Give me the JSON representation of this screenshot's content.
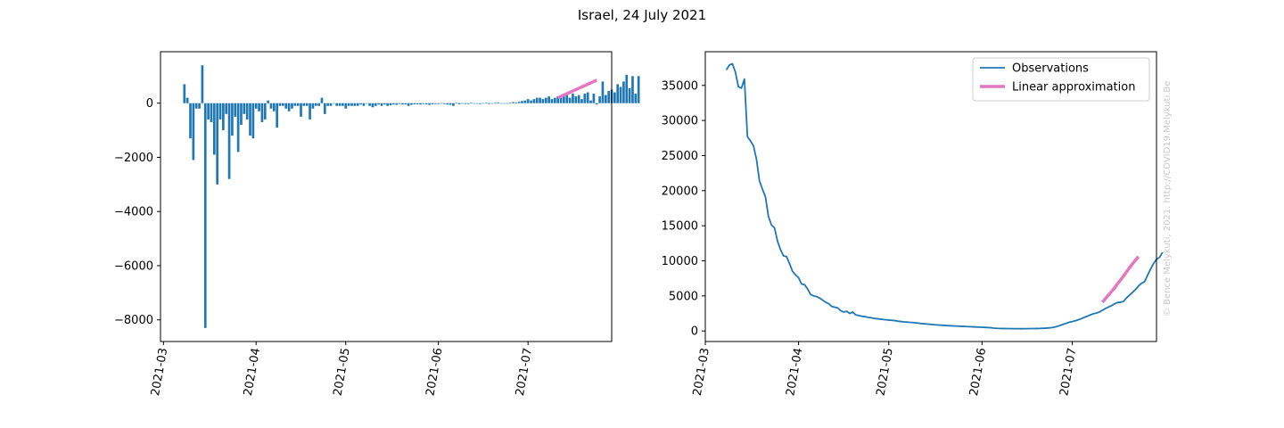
{
  "figure_title": "Israel, 24 July 2021",
  "watermark": "© Bence Melykuti, 2021. http://COVID19.Melykuti.Be",
  "colors": {
    "bars": "#1f77b4",
    "observations": "#1f77b4",
    "approximation": "#e377c2"
  },
  "chart_data": [
    {
      "type": "bar",
      "x_axis": "date",
      "xlim": [
        "2021-02-28",
        "2021-07-29"
      ],
      "ylim": [
        -8800,
        1900
      ],
      "x_ticks": [
        "2021-03",
        "2021-04",
        "2021-05",
        "2021-06",
        "2021-07"
      ],
      "y_ticks": [
        0,
        -2000,
        -4000,
        -6000,
        -8000
      ],
      "y_tick_labels": [
        "0",
        "−2000",
        "−4000",
        "−6000",
        "−8000"
      ],
      "series": [
        {
          "start_date": "2021-03-08",
          "values": [
            700,
            200,
            -1300,
            -2100,
            -200,
            -200,
            1400,
            -8300,
            -600,
            -700,
            -1900,
            -3000,
            -600,
            -1000,
            -400,
            -2800,
            -1200,
            -500,
            -1800,
            -800,
            -400,
            -600,
            -1200,
            -1300,
            -200,
            -300,
            -700,
            -600,
            100,
            -200,
            -300,
            -900,
            -100,
            -100,
            -200,
            -300,
            -200,
            -100,
            -100,
            -500,
            -100,
            -100,
            -600,
            -200,
            -100,
            -100,
            200,
            -400,
            -100,
            -100,
            0,
            -100,
            -100,
            -100,
            -200,
            -100,
            -100,
            -100,
            -100,
            -50,
            -100,
            0,
            -100,
            -150,
            -100,
            -50,
            -100,
            -50,
            -100,
            -80,
            -50,
            -60,
            -30,
            -50,
            -50,
            -100,
            -60,
            -40,
            -40,
            -50,
            -30,
            -40,
            -60,
            -40,
            -30,
            -30,
            -20,
            -30,
            -50,
            -60,
            -100,
            20,
            -40,
            -20,
            -30,
            -30,
            20,
            -20,
            -10,
            -30,
            -10,
            20,
            -30,
            -20,
            20,
            30,
            -10,
            -10,
            -20,
            20,
            40,
            30,
            50,
            80,
            100,
            150,
            100,
            150,
            200,
            200,
            150,
            200,
            250,
            150,
            200,
            250,
            200,
            250,
            300,
            200,
            350,
            250,
            300,
            150,
            350,
            400,
            100,
            350,
            -50,
            250,
            800,
            300,
            450,
            500,
            400,
            700,
            600,
            800,
            1050,
            550,
            1000,
            350,
            1000
          ]
        },
        {
          "name": "Linear approximation",
          "type": "line",
          "points": [
            [
              "2021-07-11",
              200
            ],
            [
              "2021-07-24",
              850
            ]
          ]
        }
      ]
    },
    {
      "type": "line",
      "x_axis": "date",
      "xlim": [
        "2021-03-01",
        "2021-07-29"
      ],
      "ylim": [
        -1500,
        39800
      ],
      "x_ticks": [
        "2021-03",
        "2021-04",
        "2021-05",
        "2021-06",
        "2021-07"
      ],
      "y_ticks": [
        0,
        5000,
        10000,
        15000,
        20000,
        25000,
        30000,
        35000
      ],
      "legend": {
        "position": "top-right",
        "entries": [
          "Observations",
          "Linear approximation"
        ]
      },
      "series": [
        {
          "name": "Observations",
          "start_date": "2021-03-08",
          "values": [
            37200,
            37900,
            38100,
            36900,
            34800,
            34600,
            35900,
            27700,
            27100,
            26400,
            24500,
            21400,
            20200,
            19100,
            16300,
            15100,
            14700,
            12800,
            11600,
            10700,
            10600,
            9600,
            8500,
            8000,
            7600,
            6700,
            6600,
            6000,
            5200,
            5000,
            4900,
            4700,
            4400,
            4100,
            3900,
            3500,
            3400,
            3300,
            2900,
            2700,
            2800,
            2500,
            2700,
            2300,
            2200,
            2100,
            2050,
            1950,
            1900,
            1800,
            1750,
            1700,
            1650,
            1600,
            1560,
            1520,
            1480,
            1400,
            1350,
            1300,
            1270,
            1230,
            1200,
            1150,
            1100,
            1050,
            1020,
            980,
            940,
            900,
            870,
            840,
            810,
            780,
            750,
            730,
            710,
            690,
            670,
            650,
            630,
            610,
            590,
            570,
            550,
            530,
            510,
            490,
            460,
            410,
            370,
            360,
            350,
            340,
            340,
            330,
            330,
            330,
            320,
            330,
            330,
            340,
            340,
            350,
            360,
            380,
            400,
            430,
            470,
            550,
            650,
            800,
            950,
            1100,
            1250,
            1350,
            1450,
            1600,
            1750,
            1950,
            2100,
            2300,
            2450,
            2550,
            2700,
            2950,
            3200,
            3400,
            3600,
            3850,
            4050,
            4100,
            4200,
            4700,
            5100,
            5500,
            5900,
            6400,
            6800,
            7000,
            7900,
            8800,
            9600,
            10200,
            10500,
            11200
          ]
        },
        {
          "name": "Linear approximation",
          "start_date": "2021-07-11",
          "values": [
            4100,
            4600,
            5100,
            5600,
            6100,
            6700,
            7250,
            7800,
            8400,
            9000,
            9550,
            10100,
            10600
          ]
        }
      ]
    }
  ]
}
